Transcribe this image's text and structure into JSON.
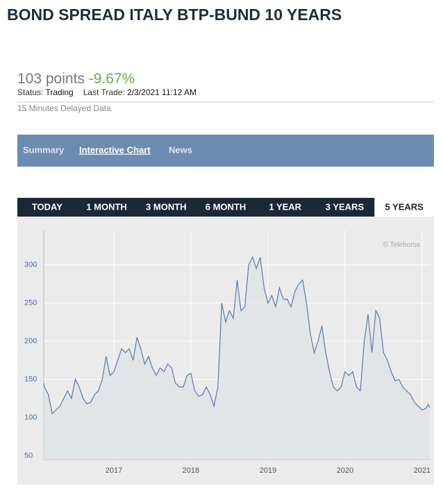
{
  "header": {
    "title": "BOND SPREAD ITALY BTP-BUND 10 YEARS"
  },
  "quote": {
    "price": "103 points",
    "change": "-9.67%",
    "status_label": "Status:",
    "status": "Trading",
    "last_trade_label": "Last Trade:",
    "last_trade": "2/3/2021 11:12 AM",
    "delay_note": "15 Minutes Delayed Data"
  },
  "tabs": {
    "items": [
      "Summary",
      "Interactive Chart",
      "News"
    ],
    "active": 1
  },
  "ranges": {
    "items": [
      "TODAY",
      "1 MONTH",
      "3 MONTH",
      "6 MONTH",
      "1 YEAR",
      "3 YEARS",
      "5 YEARS"
    ],
    "active": 6
  },
  "chart_data": {
    "type": "line",
    "watermark": "© Teleborsa",
    "color": "#5b7aa8",
    "area_color": "#dde3e6",
    "grid": true,
    "x": [
      2016.09,
      2016.1,
      2016.15,
      2016.2,
      2016.25,
      2016.3,
      2016.35,
      2016.4,
      2016.45,
      2016.5,
      2016.55,
      2016.6,
      2016.65,
      2016.7,
      2016.75,
      2016.8,
      2016.85,
      2016.9,
      2016.95,
      2017.0,
      2017.1,
      2017.15,
      2017.2,
      2017.25,
      2017.3,
      2017.35,
      2017.4,
      2017.45,
      2017.5,
      2017.55,
      2017.6,
      2017.65,
      2017.7,
      2017.75,
      2017.8,
      2017.85,
      2017.9,
      2017.95,
      2018.0,
      2018.05,
      2018.1,
      2018.15,
      2018.2,
      2018.25,
      2018.3,
      2018.35,
      2018.4,
      2018.45,
      2018.5,
      2018.55,
      2018.6,
      2018.65,
      2018.7,
      2018.75,
      2018.8,
      2018.85,
      2018.9,
      2018.95,
      2019.0,
      2019.05,
      2019.1,
      2019.15,
      2019.2,
      2019.25,
      2019.3,
      2019.35,
      2019.4,
      2019.45,
      2019.5,
      2019.55,
      2019.6,
      2019.65,
      2019.7,
      2019.75,
      2019.8,
      2019.85,
      2019.9,
      2019.95,
      2020.0,
      2020.05,
      2020.1,
      2020.15,
      2020.2,
      2020.25,
      2020.3,
      2020.35,
      2020.4,
      2020.45,
      2020.5,
      2020.55,
      2020.6,
      2020.65,
      2020.7,
      2020.75,
      2020.8,
      2020.85,
      2020.9,
      2020.95,
      2021.0,
      2021.05,
      2021.08,
      2021.1
    ],
    "values": [
      145,
      140,
      130,
      105,
      110,
      115,
      125,
      135,
      125,
      150,
      140,
      125,
      118,
      120,
      130,
      135,
      150,
      180,
      155,
      160,
      190,
      185,
      190,
      175,
      205,
      190,
      170,
      180,
      165,
      155,
      165,
      160,
      170,
      165,
      145,
      140,
      140,
      155,
      158,
      135,
      128,
      130,
      140,
      130,
      115,
      140,
      250,
      225,
      240,
      230,
      280,
      240,
      245,
      300,
      310,
      295,
      310,
      270,
      250,
      260,
      245,
      270,
      255,
      255,
      245,
      265,
      275,
      280,
      250,
      210,
      185,
      200,
      220,
      185,
      160,
      140,
      135,
      140,
      160,
      155,
      160,
      140,
      135,
      200,
      235,
      185,
      240,
      230,
      185,
      175,
      160,
      148,
      150,
      140,
      135,
      130,
      120,
      115,
      110,
      112,
      117,
      113
    ],
    "xlim": [
      2016.09,
      2021.11
    ],
    "xticks": [
      2017,
      2018,
      2019,
      2020,
      2021
    ],
    "ylim": [
      45,
      345
    ],
    "yticks": [
      50,
      100,
      150,
      200,
      250,
      300
    ]
  }
}
